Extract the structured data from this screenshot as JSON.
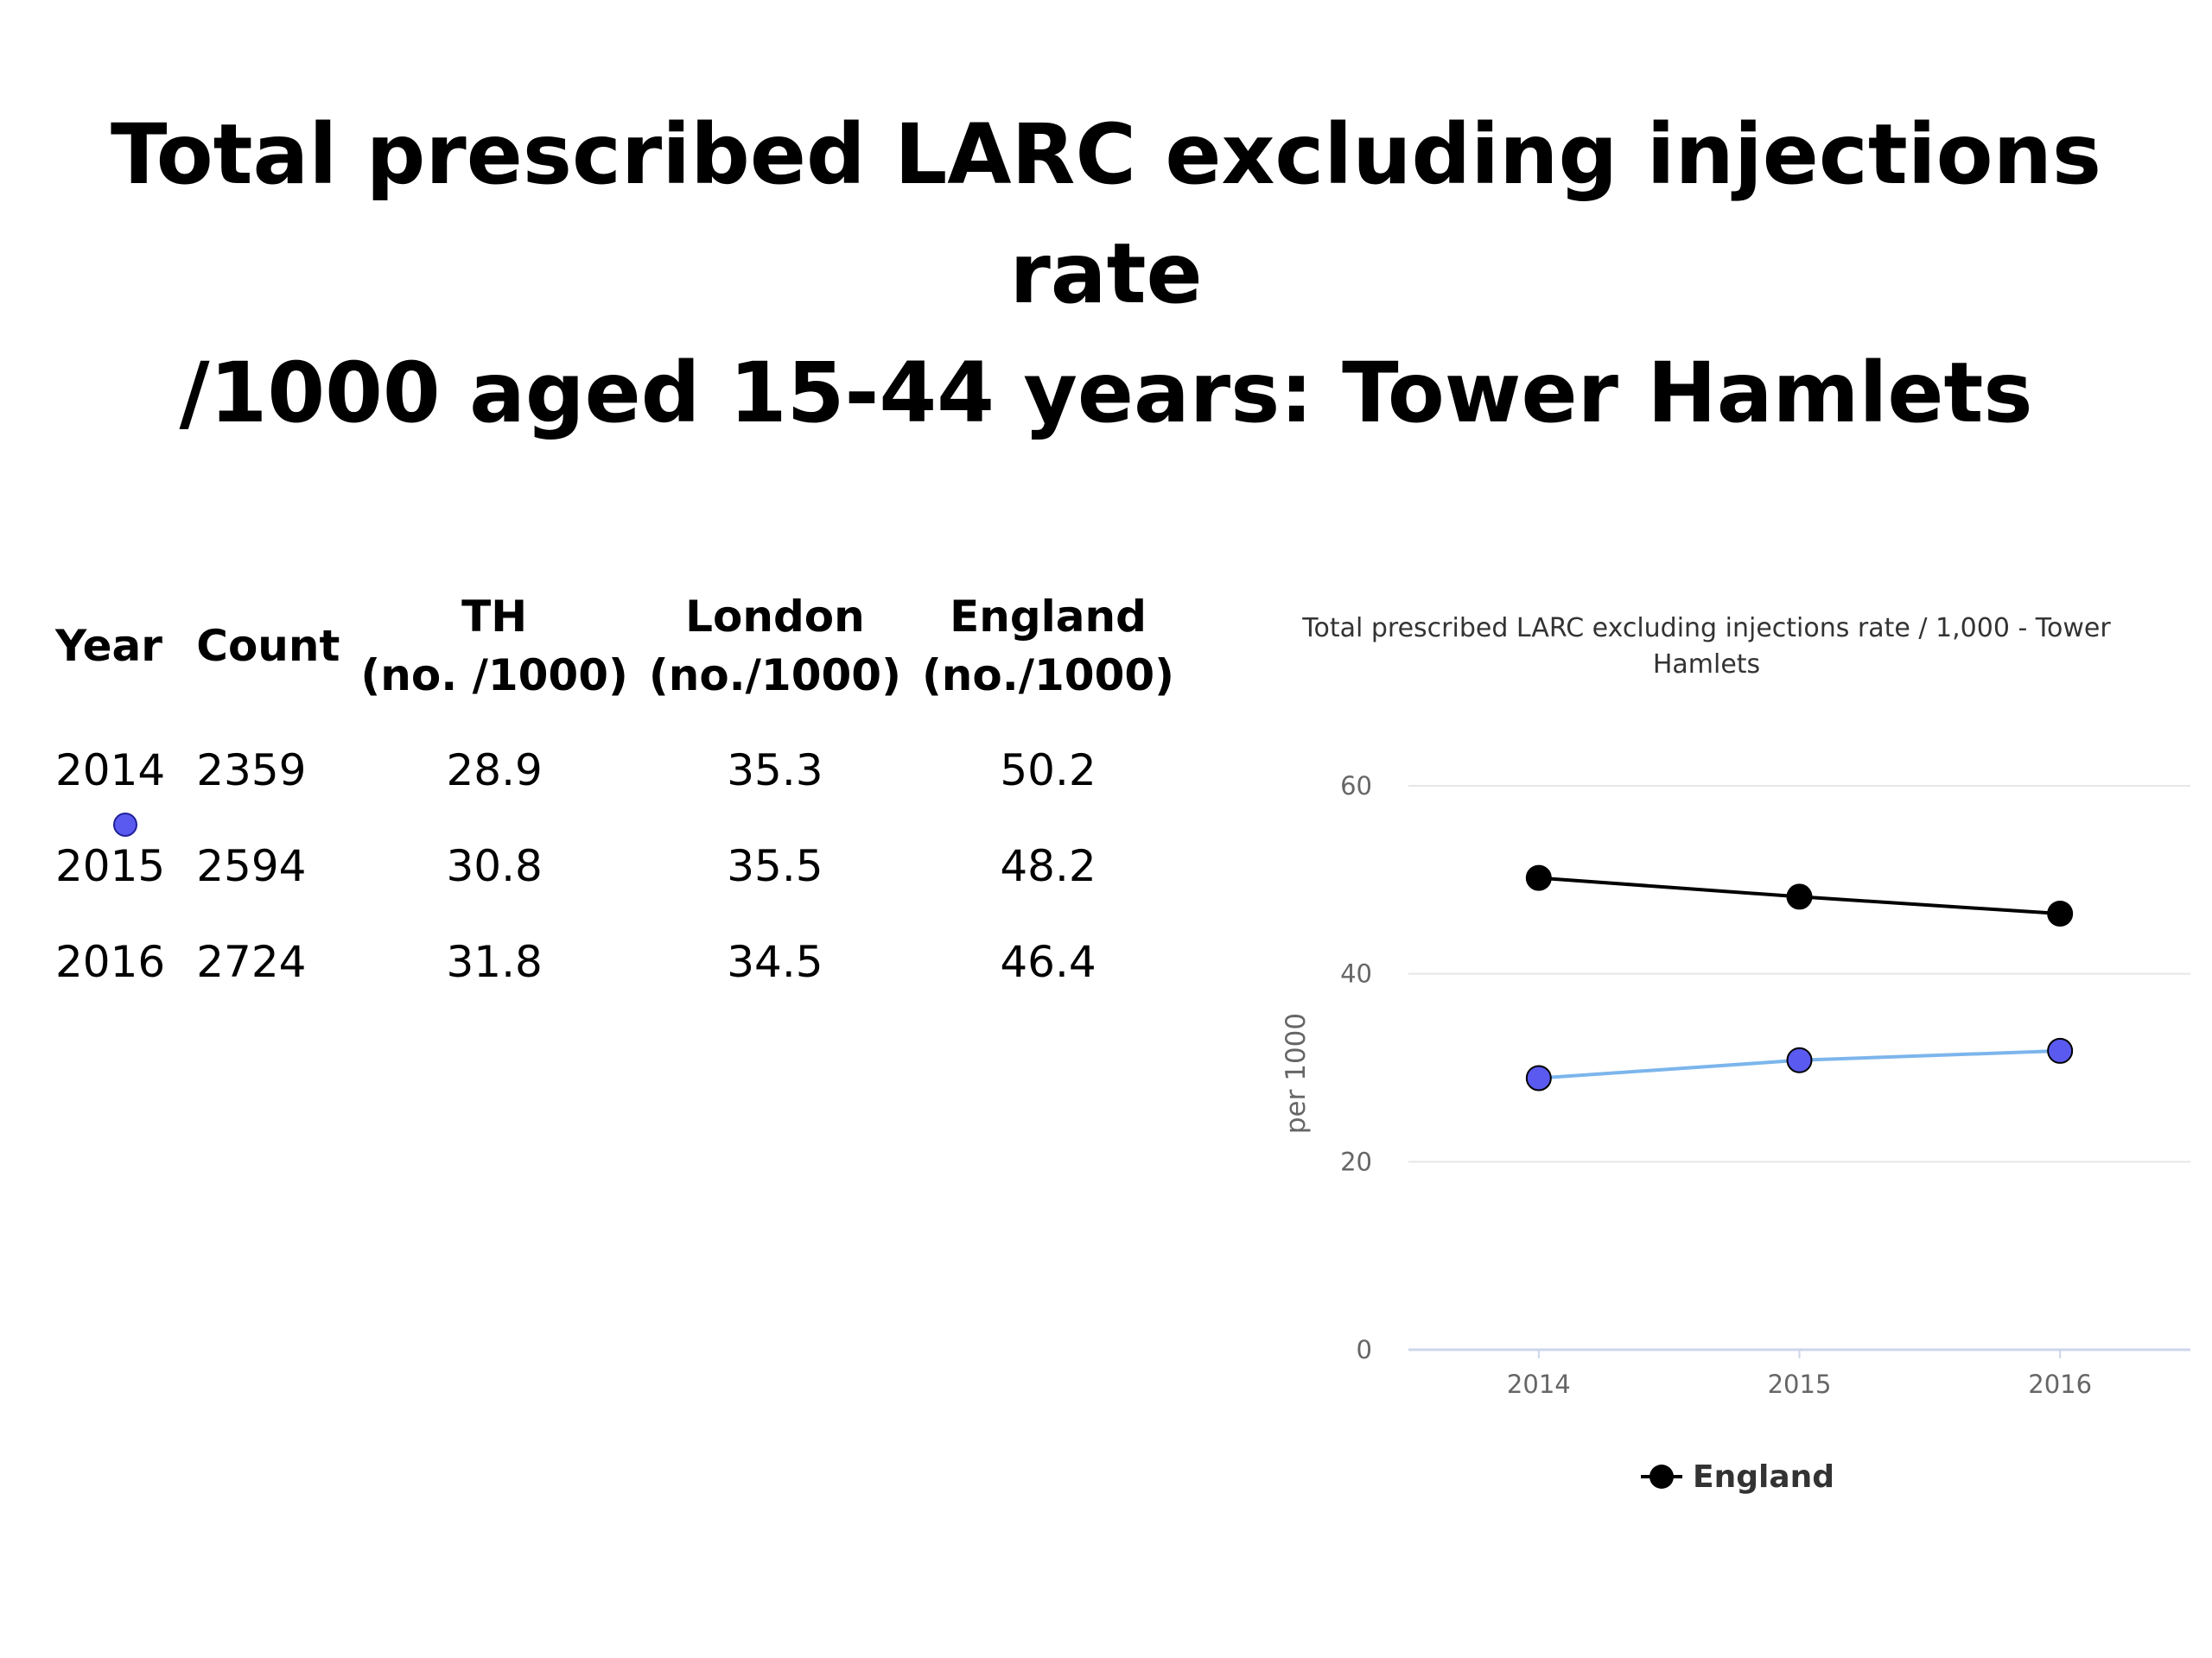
{
  "slide": {
    "title_line1": "Total prescribed LARC excluding injections rate",
    "title_line2": "/1000 aged 15-44 years: Tower Hamlets"
  },
  "table": {
    "headers": {
      "year": "Year",
      "count": "Count",
      "th_line1": "TH",
      "th_line2": "(no. /1000)",
      "london_line1": "London",
      "london_line2": "(no./1000)",
      "england_line1": "England",
      "england_line2": "(no./1000)"
    },
    "rows": [
      {
        "year": "2014",
        "count": "2359",
        "th": "28.9",
        "london": "35.3",
        "england": "50.2"
      },
      {
        "year": "2015",
        "count": "2594",
        "th": "30.8",
        "london": "35.5",
        "england": "48.2"
      },
      {
        "year": "2016",
        "count": "2724",
        "th": "31.8",
        "london": "34.5",
        "england": "46.4"
      }
    ]
  },
  "chart_data": {
    "type": "line",
    "title_line1": "Total prescribed LARC excluding injections rate / 1,000 - Tower",
    "title_line2": "Hamlets",
    "ylabel": "per 1000",
    "xlabel": "",
    "x": [
      "2014",
      "2015",
      "2016"
    ],
    "ylim": [
      0,
      60
    ],
    "yticks": [
      0,
      20,
      40,
      60
    ],
    "grid": true,
    "legend_position": "bottom",
    "series": [
      {
        "name": "England",
        "values": [
          50.2,
          48.2,
          46.4
        ],
        "line_color": "#000000",
        "marker_color": "#000000",
        "in_legend": true
      },
      {
        "values": [
          28.9,
          30.8,
          31.8
        ],
        "line_color": "#7cb5ec",
        "marker_color": "#5a5af0",
        "in_legend": false
      }
    ],
    "grid_color": "#e6e6e6",
    "axis_color": "#ccd6eb"
  }
}
